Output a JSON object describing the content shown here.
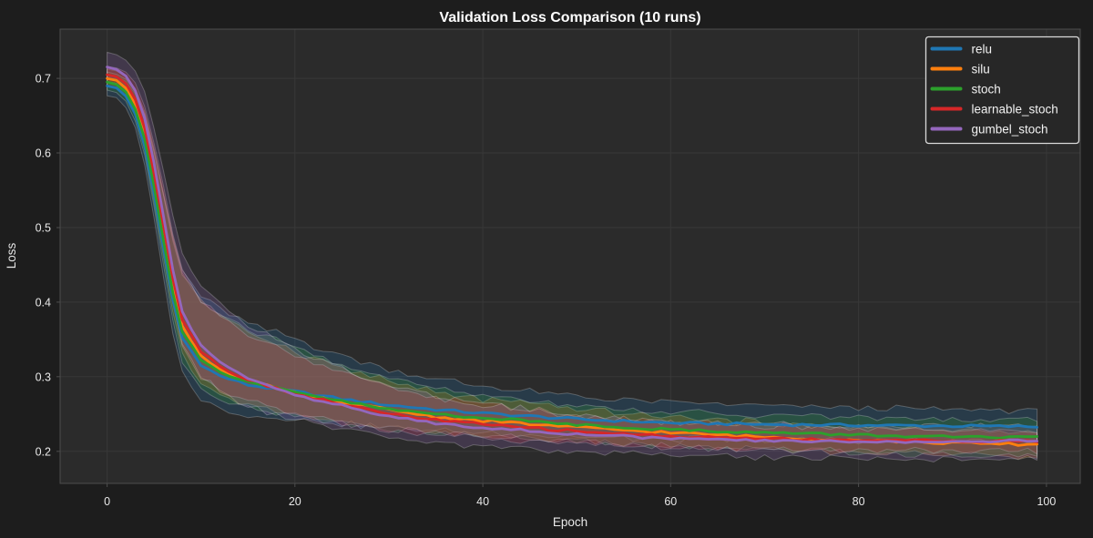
{
  "title": "Validation Loss Comparison (10 runs)",
  "axes": {
    "xlabel": "Epoch",
    "ylabel": "Loss"
  },
  "legend": {
    "items": [
      "relu",
      "silu",
      "stoch",
      "learnable_stoch",
      "gumbel_stoch"
    ],
    "position": "upper right"
  },
  "colors": {
    "figure_bg": "#1d1d1d",
    "axes_bg": "#2b2b2b",
    "grid": "#383838",
    "spine": "#4d4d4d",
    "tick_text": "#e8e8e8",
    "title_text": "#ffffff",
    "band_edge": "rgba(240,240,240,0.25)",
    "legend_bg": "#272727",
    "legend_border": "#d9d9d9",
    "relu": "#1f77b4",
    "silu": "#ff7f0e",
    "stoch": "#2ca02c",
    "learnable_stoch": "#d62728",
    "gumbel_stoch": "#9467bd"
  },
  "chart_data": {
    "type": "line",
    "title": "Validation Loss Comparison (10 runs)",
    "xlabel": "Epoch",
    "ylabel": "Loss",
    "runs_per_series": 10,
    "grid": true,
    "legend_position": "upper right",
    "xlim": [
      -5,
      103.6
    ],
    "ylim": [
      0.157,
      0.766
    ],
    "x_ticks": [
      0,
      20,
      40,
      60,
      80,
      100
    ],
    "y_ticks": [
      0.2,
      0.3,
      0.4,
      0.5,
      0.6,
      0.7
    ],
    "epochs": [
      0,
      1,
      2,
      3,
      4,
      5,
      6,
      7,
      8,
      10,
      12,
      15,
      20,
      25,
      30,
      35,
      40,
      50,
      60,
      70,
      80,
      90,
      99
    ],
    "series": [
      {
        "name": "relu",
        "color": "#1f77b4",
        "mean": [
          0.69,
          0.687,
          0.676,
          0.652,
          0.61,
          0.545,
          0.473,
          0.403,
          0.352,
          0.316,
          0.301,
          0.289,
          0.28,
          0.27,
          0.262,
          0.256,
          0.251,
          0.243,
          0.238,
          0.236,
          0.235,
          0.234,
          0.233
        ],
        "band_upper": [
          0.015,
          0.016,
          0.02,
          0.028,
          0.04,
          0.055,
          0.07,
          0.082,
          0.09,
          0.093,
          0.09,
          0.082,
          0.07,
          0.058,
          0.048,
          0.041,
          0.036,
          0.03,
          0.027,
          0.025,
          0.023,
          0.022,
          0.021
        ],
        "band_lower": [
          0.013,
          0.013,
          0.015,
          0.019,
          0.026,
          0.034,
          0.04,
          0.044,
          0.046,
          0.046,
          0.044,
          0.041,
          0.037,
          0.033,
          0.03,
          0.028,
          0.026,
          0.024,
          0.022,
          0.021,
          0.02,
          0.02,
          0.019
        ]
      },
      {
        "name": "silu",
        "color": "#ff7f0e",
        "mean": [
          0.7,
          0.697,
          0.687,
          0.665,
          0.626,
          0.563,
          0.492,
          0.421,
          0.368,
          0.328,
          0.31,
          0.294,
          0.278,
          0.265,
          0.256,
          0.246,
          0.241,
          0.232,
          0.225,
          0.219,
          0.215,
          0.211,
          0.209
        ],
        "band_upper": [
          0.012,
          0.013,
          0.016,
          0.022,
          0.032,
          0.044,
          0.056,
          0.066,
          0.072,
          0.074,
          0.072,
          0.066,
          0.056,
          0.046,
          0.038,
          0.033,
          0.029,
          0.024,
          0.021,
          0.019,
          0.018,
          0.017,
          0.016
        ],
        "band_lower": [
          0.01,
          0.01,
          0.012,
          0.015,
          0.021,
          0.027,
          0.032,
          0.035,
          0.037,
          0.037,
          0.035,
          0.033,
          0.03,
          0.027,
          0.024,
          0.022,
          0.021,
          0.019,
          0.018,
          0.017,
          0.016,
          0.016,
          0.015
        ]
      },
      {
        "name": "stoch",
        "color": "#2ca02c",
        "mean": [
          0.695,
          0.692,
          0.682,
          0.659,
          0.619,
          0.555,
          0.483,
          0.413,
          0.361,
          0.323,
          0.306,
          0.292,
          0.279,
          0.267,
          0.256,
          0.25,
          0.245,
          0.236,
          0.229,
          0.225,
          0.222,
          0.219,
          0.218
        ],
        "band_upper": [
          0.013,
          0.014,
          0.017,
          0.024,
          0.034,
          0.047,
          0.06,
          0.07,
          0.077,
          0.079,
          0.077,
          0.07,
          0.06,
          0.049,
          0.041,
          0.035,
          0.031,
          0.026,
          0.024,
          0.023,
          0.023,
          0.023,
          0.023
        ],
        "band_lower": [
          0.011,
          0.011,
          0.013,
          0.017,
          0.023,
          0.029,
          0.034,
          0.038,
          0.04,
          0.04,
          0.038,
          0.036,
          0.032,
          0.029,
          0.027,
          0.025,
          0.024,
          0.023,
          0.023,
          0.023,
          0.024,
          0.024,
          0.025
        ]
      },
      {
        "name": "learnable_stoch",
        "color": "#d62728",
        "mean": [
          0.705,
          0.702,
          0.693,
          0.672,
          0.634,
          0.573,
          0.503,
          0.432,
          0.377,
          0.334,
          0.314,
          0.296,
          0.277,
          0.263,
          0.25,
          0.242,
          0.236,
          0.227,
          0.22,
          0.217,
          0.215,
          0.214,
          0.213
        ],
        "band_upper": [
          0.011,
          0.012,
          0.015,
          0.021,
          0.03,
          0.041,
          0.052,
          0.061,
          0.067,
          0.069,
          0.067,
          0.061,
          0.052,
          0.043,
          0.036,
          0.031,
          0.027,
          0.022,
          0.019,
          0.017,
          0.016,
          0.015,
          0.014
        ],
        "band_lower": [
          0.009,
          0.009,
          0.011,
          0.014,
          0.019,
          0.025,
          0.029,
          0.032,
          0.034,
          0.034,
          0.032,
          0.03,
          0.027,
          0.024,
          0.022,
          0.02,
          0.018,
          0.016,
          0.015,
          0.014,
          0.014,
          0.013,
          0.013
        ]
      },
      {
        "name": "gumbel_stoch",
        "color": "#9467bd",
        "mean": [
          0.715,
          0.712,
          0.703,
          0.683,
          0.646,
          0.586,
          0.516,
          0.444,
          0.387,
          0.341,
          0.319,
          0.299,
          0.276,
          0.261,
          0.246,
          0.238,
          0.232,
          0.223,
          0.217,
          0.214,
          0.213,
          0.213,
          0.214
        ],
        "band_upper": [
          0.02,
          0.02,
          0.022,
          0.027,
          0.036,
          0.048,
          0.061,
          0.071,
          0.078,
          0.08,
          0.078,
          0.071,
          0.061,
          0.05,
          0.042,
          0.036,
          0.031,
          0.026,
          0.023,
          0.022,
          0.022,
          0.022,
          0.022
        ],
        "band_lower": [
          0.016,
          0.016,
          0.017,
          0.02,
          0.025,
          0.031,
          0.036,
          0.04,
          0.042,
          0.042,
          0.04,
          0.038,
          0.034,
          0.031,
          0.028,
          0.026,
          0.025,
          0.023,
          0.022,
          0.022,
          0.022,
          0.023,
          0.023
        ]
      }
    ]
  }
}
